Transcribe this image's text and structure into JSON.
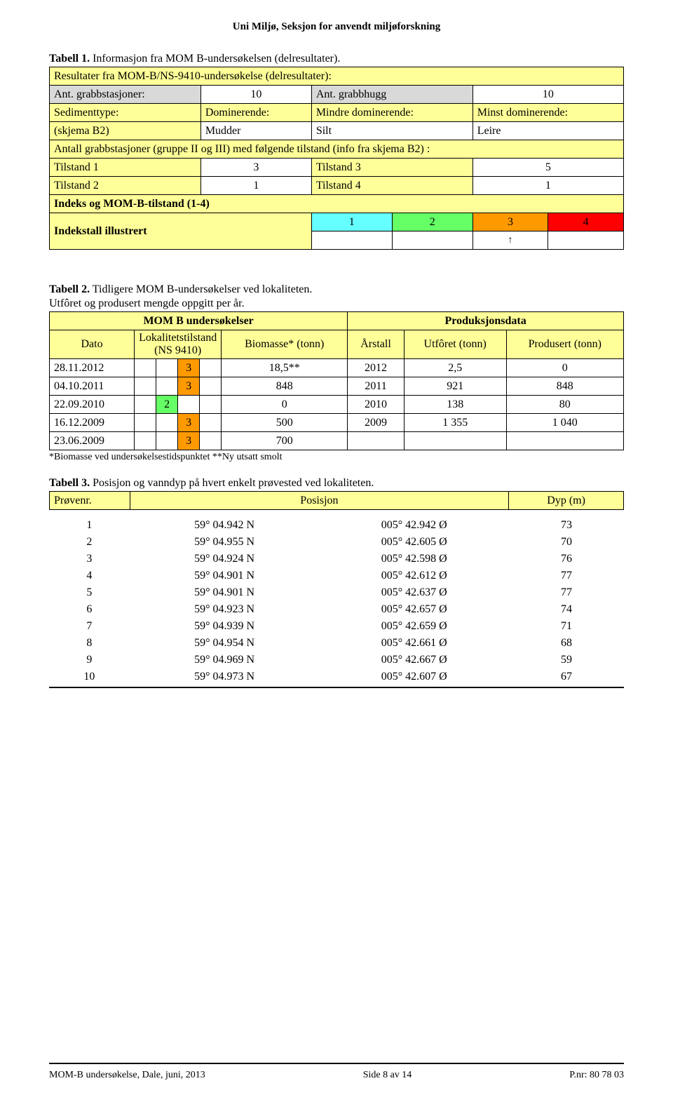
{
  "colors": {
    "yellow": "#ffff99",
    "grey": "#d9d9d9",
    "cyan": "#66ffff",
    "green": "#66ff66",
    "orange": "#ff9900",
    "red": "#ff0000",
    "white": "#ffffff"
  },
  "header": "Uni Miljø, Seksjon for anvendt miljøforskning",
  "t1": {
    "caption_bold": "Tabell 1.",
    "caption_rest": " Informasjon fra MOM B-undersøkelsen (delresultater).",
    "row_title": "Resultater fra MOM-B/NS-9410-undersøkelse (delresultater):",
    "r2": {
      "a": "Ant. grabbstasjoner:",
      "b": "10",
      "c": "Ant. grabbhugg",
      "d": "10"
    },
    "r3": {
      "a": "Sedimenttype:",
      "b": "Dominerende:",
      "c": "Mindre dominerende:",
      "d": "Minst dominerende:"
    },
    "r4": {
      "a": "(skjema B2)",
      "b": "Mudder",
      "c": "Silt",
      "d": "Leire"
    },
    "r5": "Antall grabbstasjoner (gruppe II og III) med følgende tilstand (info fra skjema B2) :",
    "r6": {
      "a": "Tilstand 1",
      "b": "3",
      "c": "Tilstand 3",
      "d": "5"
    },
    "r7": {
      "a": "Tilstand 2",
      "b": "1",
      "c": "Tilstand 4",
      "d": "1"
    },
    "r8": "Indeks og MOM-B-tilstand (1-4)",
    "r9": {
      "label": "Indekstall illustrert",
      "v1": "1",
      "v2": "2",
      "v3": "3",
      "v4": "4"
    },
    "arrow": "↑"
  },
  "t2": {
    "caption_bold": "Tabell 2.",
    "caption_rest": " Tidligere MOM B-undersøkelser ved lokaliteten.",
    "caption_line2": "Utfôret og produsert mengde oppgitt per år.",
    "h_left": "MOM B undersøkelser",
    "h_right": "Produksjonsdata",
    "h_dato": "Dato",
    "h_lokal": "Lokalitetstilstand (NS 9410)",
    "h_biomasse": "Biomasse* (tonn)",
    "h_arstall": "Årstall",
    "h_utforet": "Utfôret (tonn)",
    "h_produsert": "Produsert (tonn)",
    "rows": [
      {
        "dato": "28.11.2012",
        "tilstand": "3",
        "tilstand_color": "#ff9900",
        "biomasse": "18,5**",
        "ar": "2012",
        "utforet": "2,5",
        "produsert": "0"
      },
      {
        "dato": "04.10.2011",
        "tilstand": "3",
        "tilstand_color": "#ff9900",
        "biomasse": "848",
        "ar": "2011",
        "utforet": "921",
        "produsert": "848"
      },
      {
        "dato": "22.09.2010",
        "tilstand": "2",
        "tilstand_color": "#66ff66",
        "biomasse": "0",
        "ar": "2010",
        "utforet": "138",
        "produsert": "80"
      },
      {
        "dato": "16.12.2009",
        "tilstand": "3",
        "tilstand_color": "#ff9900",
        "biomasse": "500",
        "ar": "2009",
        "utforet": "1 355",
        "produsert": "1 040"
      },
      {
        "dato": "23.06.2009",
        "tilstand": "3",
        "tilstand_color": "#ff9900",
        "biomasse": "700",
        "ar": "",
        "utforet": "",
        "produsert": ""
      }
    ],
    "footnote": "*Biomasse ved undersøkelsestidspunktet **Ny utsatt smolt"
  },
  "t3": {
    "caption_bold": "Tabell 3.",
    "caption_rest": " Posisjon og vanndyp på hvert enkelt prøvested ved lokaliteten.",
    "h1": "Prøvenr.",
    "h2": "Posisjon",
    "h3": "Dyp (m)",
    "rows": [
      {
        "n": "1",
        "lat": "59° 04.942 N",
        "lon": "005° 42.942 Ø",
        "d": "73"
      },
      {
        "n": "2",
        "lat": "59° 04.955 N",
        "lon": "005° 42.605 Ø",
        "d": "70"
      },
      {
        "n": "3",
        "lat": "59° 04.924 N",
        "lon": "005° 42.598 Ø",
        "d": "76"
      },
      {
        "n": "4",
        "lat": "59° 04.901 N",
        "lon": "005° 42.612 Ø",
        "d": "77"
      },
      {
        "n": "5",
        "lat": "59° 04.901 N",
        "lon": "005° 42.637 Ø",
        "d": "77"
      },
      {
        "n": "6",
        "lat": "59° 04.923 N",
        "lon": "005° 42.657 Ø",
        "d": "74"
      },
      {
        "n": "7",
        "lat": "59° 04.939 N",
        "lon": "005° 42.659 Ø",
        "d": "71"
      },
      {
        "n": "8",
        "lat": "59° 04.954 N",
        "lon": "005° 42.661 Ø",
        "d": "68"
      },
      {
        "n": "9",
        "lat": "59° 04.969 N",
        "lon": "005° 42.667 Ø",
        "d": "59"
      },
      {
        "n": "10",
        "lat": "59° 04.973 N",
        "lon": "005° 42.607 Ø",
        "d": "67"
      }
    ]
  },
  "footer": {
    "left": "MOM-B undersøkelse, Dale, juni, 2013",
    "center": "Side 8 av 14",
    "right": "P.nr: 80 78 03"
  }
}
